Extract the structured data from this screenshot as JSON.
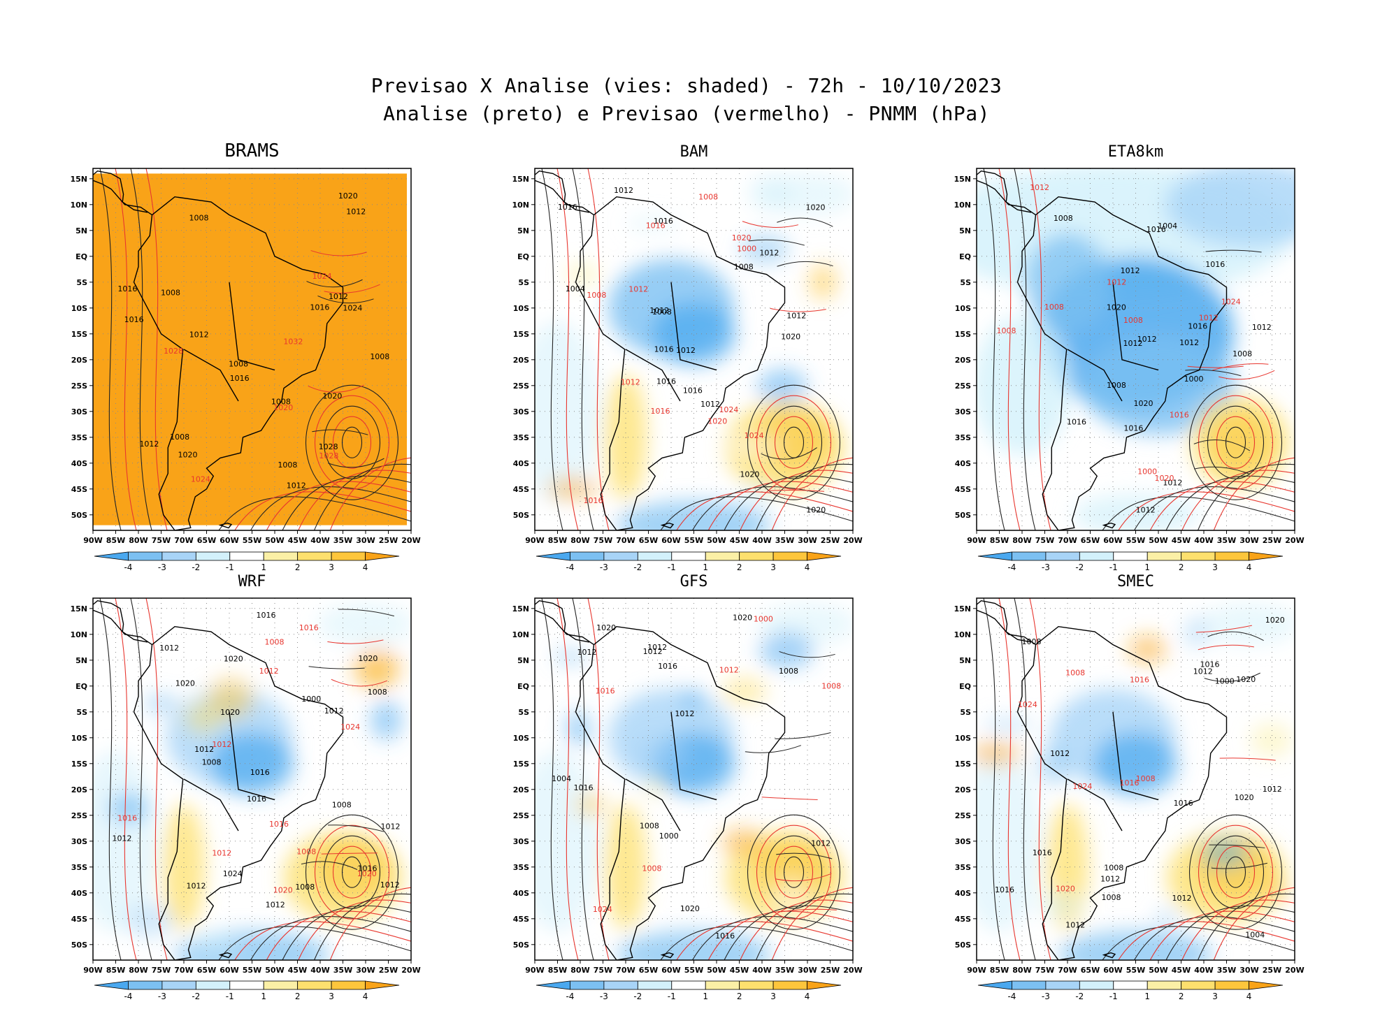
{
  "header": {
    "line1": "Previsao X Analise (vies: shaded) - 72h - 10/10/2023",
    "line2": "Analise (preto) e Previsao (vermelho) - PNMM (hPa)"
  },
  "chart_data": {
    "type": "contour-map-panels",
    "xlabel": "",
    "ylabel": "",
    "lon_ticks": [
      "90W",
      "85W",
      "80W",
      "75W",
      "70W",
      "65W",
      "60W",
      "55W",
      "50W",
      "45W",
      "40W",
      "35W",
      "30W",
      "25W",
      "20W"
    ],
    "lat_ticks": [
      "15N",
      "10N",
      "5N",
      "EQ",
      "5S",
      "10S",
      "15S",
      "20S",
      "25S",
      "30S",
      "35S",
      "40S",
      "45S",
      "50S"
    ],
    "xlim": [
      -90,
      -20
    ],
    "ylim": [
      -53,
      17
    ],
    "colorbar": {
      "labels": [
        "-4",
        "-3",
        "-2",
        "-1",
        "1",
        "2",
        "3",
        "4"
      ],
      "colors": [
        "#4aa8ef",
        "#7cc0f2",
        "#a8d4f7",
        "#d3f1fb",
        "#ffffff",
        "#fbf0a6",
        "#fde06e",
        "#fdc63c",
        "#f9a318"
      ]
    },
    "colors": {
      "analysis_contours": "#000000",
      "forecast_contours": "#e8362f"
    },
    "panels": [
      {
        "name": "BRAMS",
        "bias_field": "orange",
        "labels_black": [
          "1012",
          "1008",
          "1008",
          "1008",
          "1012",
          "1008",
          "1008",
          "1012",
          "1016",
          "1020",
          "1012",
          "1016",
          "1008",
          "1008",
          "1016",
          "1020",
          "1016",
          "1012",
          "1020",
          "1024",
          "1028"
        ],
        "labels_red": [
          "1020",
          "1024",
          "1028",
          "1032",
          "1024",
          "1028"
        ]
      },
      {
        "name": "BAM",
        "bias_field": "mixed",
        "labels_black": [
          "1012",
          "1012",
          "1016",
          "1012",
          "1008",
          "1012",
          "1012",
          "1016",
          "1020",
          "1016",
          "1020",
          "1012",
          "1020",
          "1004",
          "1008",
          "1016",
          "1016",
          "1020"
        ],
        "labels_red": [
          "1016",
          "1008",
          "1012",
          "1008",
          "1020",
          "1024",
          "1024",
          "1012",
          "1016",
          "1000",
          "1016",
          "1020"
        ]
      },
      {
        "name": "ETA8km",
        "bias_field": "blue",
        "labels_black": [
          "1008",
          "1012",
          "1012",
          "1016",
          "1012",
          "1012",
          "1016",
          "1016",
          "1020",
          "1016",
          "1016",
          "1012",
          "1008",
          "1012",
          "1004",
          "1008",
          "1000",
          "1020",
          "1012"
        ],
        "labels_red": [
          "1012",
          "1012",
          "1008",
          "1008",
          "1016",
          "1020",
          "1024",
          "1000",
          "1012",
          "1008"
        ]
      },
      {
        "name": "WRF",
        "bias_field": "mixed",
        "labels_black": [
          "1012",
          "1012",
          "1008",
          "1012",
          "1016",
          "1020",
          "1012",
          "1012",
          "1016",
          "1008",
          "1012",
          "1016",
          "1020",
          "1012",
          "1016",
          "1020",
          "1012",
          "1008",
          "1008",
          "1000",
          "1020",
          "1024"
        ],
        "labels_red": [
          "1012",
          "1016",
          "1008",
          "1012",
          "1016",
          "1020",
          "1016",
          "1020",
          "1024",
          "1008",
          "1012"
        ]
      },
      {
        "name": "GFS",
        "bias_field": "mixed",
        "labels_black": [
          "1012",
          "1012",
          "1008",
          "1012",
          "1016",
          "1012",
          "1016",
          "1020",
          "1016",
          "1020",
          "1004",
          "1008",
          "1000",
          "1012",
          "1020"
        ],
        "labels_red": [
          "1012",
          "1008",
          "1016",
          "1024",
          "1008",
          "1000"
        ]
      },
      {
        "name": "SMEC",
        "bias_field": "mixed",
        "labels_black": [
          "1012",
          "1008",
          "1012",
          "1012",
          "1016",
          "1012",
          "1016",
          "1016",
          "1020",
          "1008",
          "1012",
          "1016",
          "1020",
          "1004",
          "1008",
          "1000",
          "1012",
          "1020"
        ],
        "labels_red": [
          "1016",
          "1008",
          "1020",
          "1024",
          "1024",
          "1016",
          "1008"
        ]
      }
    ]
  }
}
